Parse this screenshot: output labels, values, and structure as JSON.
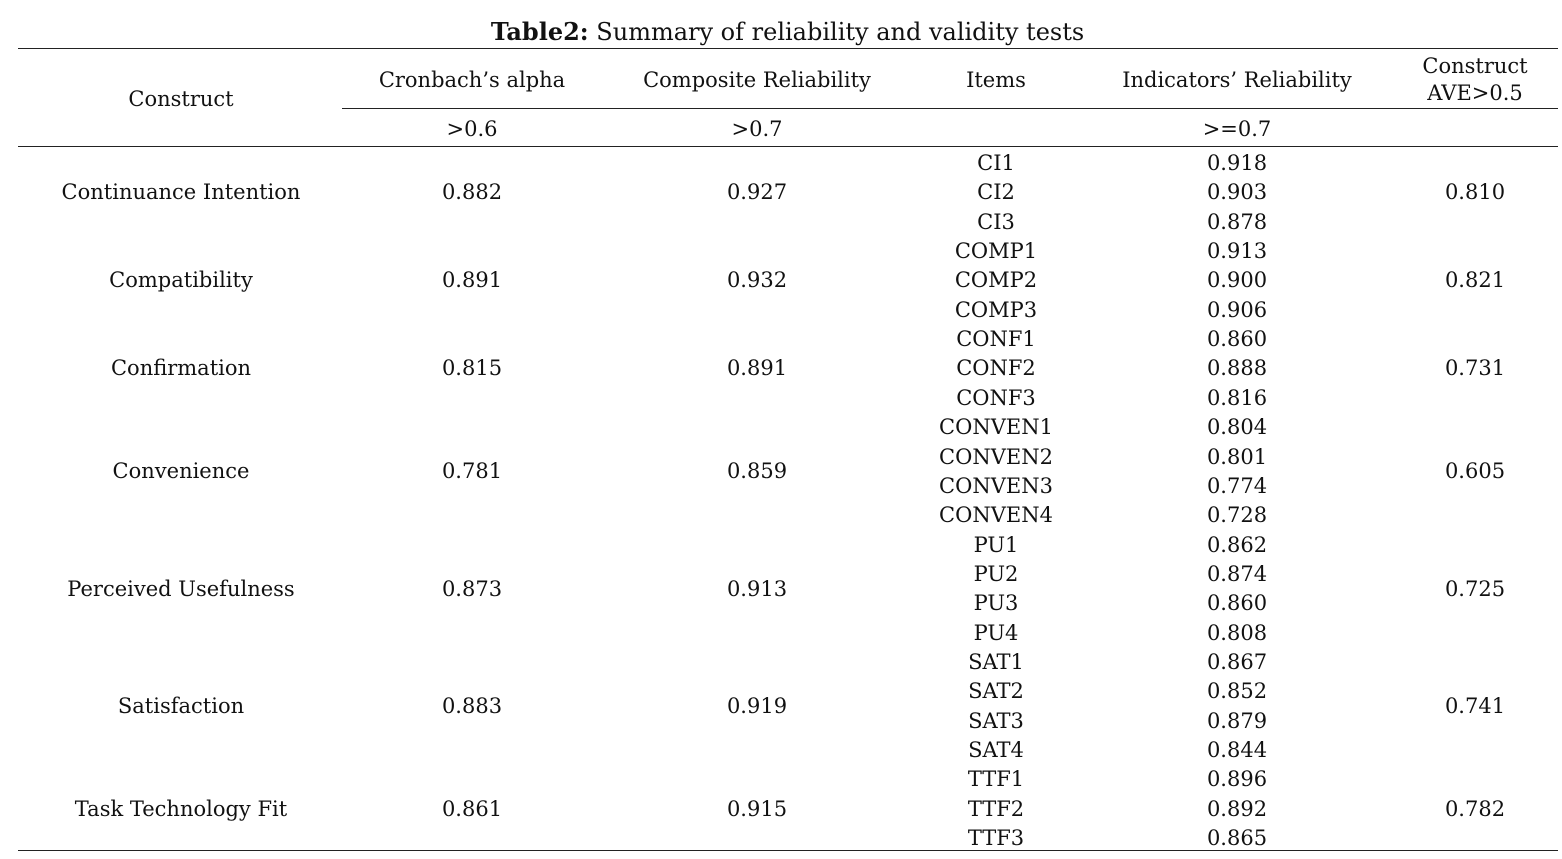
{
  "caption": {
    "label": "Table2:",
    "text": "Summary of reliability and validity tests"
  },
  "headers": {
    "construct": "Construct",
    "alpha": "Cronbach’s alpha",
    "composite": "Composite Reliability",
    "items": "Items",
    "indicators": "Indicators’ Reliability",
    "ave_line1": "Construct",
    "ave_line2": "AVE>0.5"
  },
  "thresholds": {
    "alpha": ">0.6",
    "composite": ">0.7",
    "indicators": ">=0.7"
  },
  "rows": [
    {
      "construct": "Continuance Intention",
      "alpha": "0.882",
      "cr": "0.927",
      "ave": "0.810",
      "items": [
        "CI1",
        "CI2",
        "CI3"
      ],
      "loadings": [
        "0.918",
        "0.903",
        "0.878"
      ]
    },
    {
      "construct": "Compatibility",
      "alpha": "0.891",
      "cr": "0.932",
      "ave": "0.821",
      "items": [
        "COMP1",
        "COMP2",
        "COMP3"
      ],
      "loadings": [
        "0.913",
        "0.900",
        "0.906"
      ]
    },
    {
      "construct": "Confirmation",
      "alpha": "0.815",
      "cr": "0.891",
      "ave": "0.731",
      "items": [
        "CONF1",
        "CONF2",
        "CONF3"
      ],
      "loadings": [
        "0.860",
        "0.888",
        "0.816"
      ]
    },
    {
      "construct": "Convenience",
      "alpha": "0.781",
      "cr": "0.859",
      "ave": "0.605",
      "items": [
        "CONVEN1",
        "CONVEN2",
        "CONVEN3",
        "CONVEN4"
      ],
      "loadings": [
        "0.804",
        "0.801",
        "0.774",
        "0.728"
      ]
    },
    {
      "construct": "Perceived Usefulness",
      "alpha": "0.873",
      "cr": "0.913",
      "ave": "0.725",
      "items": [
        "PU1",
        "PU2",
        "PU3",
        "PU4"
      ],
      "loadings": [
        "0.862",
        "0.874",
        "0.860",
        "0.808"
      ]
    },
    {
      "construct": "Satisfaction",
      "alpha": "0.883",
      "cr": "0.919",
      "ave": "0.741",
      "items": [
        "SAT1",
        "SAT2",
        "SAT3",
        "SAT4"
      ],
      "loadings": [
        "0.867",
        "0.852",
        "0.879",
        "0.844"
      ]
    },
    {
      "construct": "Task Technology Fit",
      "alpha": "0.861",
      "cr": "0.915",
      "ave": "0.782",
      "items": [
        "TTF1",
        "TTF2",
        "TTF3"
      ],
      "loadings": [
        "0.896",
        "0.892",
        "0.865"
      ]
    }
  ]
}
